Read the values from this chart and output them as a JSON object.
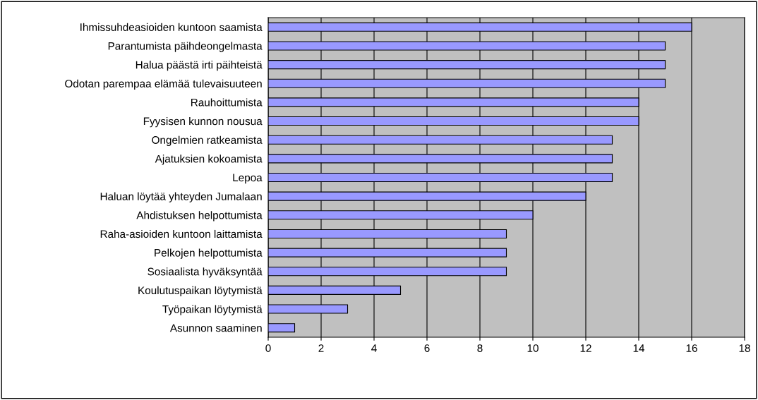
{
  "chart_data": {
    "type": "bar",
    "orientation": "horizontal",
    "categories": [
      "Ihmissuhdeasioiden kuntoon saamista",
      "Parantumista päihdeongelmasta",
      "Halua päästä irti päihteistä",
      "Odotan parempaa elämää tulevaisuuteen",
      "Rauhoittumista",
      "Fyysisen kunnon nousua",
      "Ongelmien ratkeamista",
      "Ajatuksien kokoamista",
      "Lepoa",
      "Haluan löytää yhteyden Jumalaan",
      "Ahdistuksen helpottumista",
      "Raha-asioiden kuntoon laittamista",
      "Pelkojen helpottumista",
      "Sosiaalista hyväksyntää",
      "Koulutuspaikan löytymistä",
      "Työpaikan löytymistä",
      "Asunnon saaminen"
    ],
    "values": [
      16,
      15,
      15,
      15,
      14,
      14,
      13,
      13,
      13,
      12,
      10,
      9,
      9,
      9,
      5,
      3,
      1
    ],
    "color": "#9999ff",
    "xlim": [
      0,
      18
    ],
    "xticks": [
      0,
      2,
      4,
      6,
      8,
      10,
      12,
      14,
      16,
      18
    ],
    "grid": "x"
  }
}
